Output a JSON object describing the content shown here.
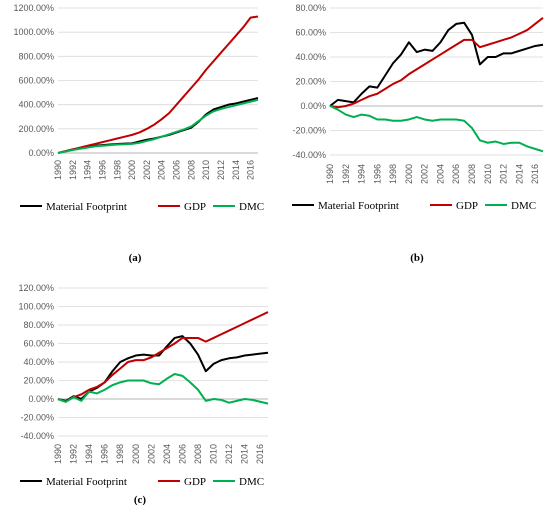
{
  "colors": {
    "Material Footprint": "#000000",
    "GDP": "#c00000",
    "DMC": "#00b050"
  },
  "captions": {
    "a": "(a)",
    "b": "(b)",
    "c": "(c)"
  },
  "chart_data": [
    {
      "type": "line",
      "panel": "a",
      "x": [
        1990,
        1991,
        1992,
        1993,
        1994,
        1995,
        1996,
        1997,
        1998,
        1999,
        2000,
        2001,
        2002,
        2003,
        2004,
        2005,
        2006,
        2007,
        2008,
        2009,
        2010,
        2011,
        2012,
        2013,
        2014,
        2015,
        2016,
        2017
      ],
      "x_tick_labels": [
        "1990",
        "1992",
        "1994",
        "1996",
        "1998",
        "2000",
        "2002",
        "2004",
        "2006",
        "2008",
        "2010",
        "2012",
        "2014",
        "2016"
      ],
      "y_tick_labels": [
        "0.00%",
        "200.00%",
        "400.00%",
        "600.00%",
        "800.00%",
        "1000.00%",
        "1200.00%"
      ],
      "ylim": [
        0,
        1200
      ],
      "legend": "bottom",
      "series": [
        {
          "name": "Material Footprint",
          "values": [
            0,
            15,
            30,
            40,
            50,
            60,
            65,
            70,
            75,
            78,
            80,
            95,
            110,
            120,
            135,
            150,
            170,
            190,
            210,
            260,
            320,
            360,
            380,
            400,
            410,
            425,
            440,
            455
          ]
        },
        {
          "name": "GDP",
          "values": [
            0,
            15,
            30,
            45,
            60,
            75,
            90,
            105,
            120,
            135,
            150,
            170,
            200,
            235,
            280,
            330,
            400,
            470,
            540,
            610,
            690,
            760,
            830,
            900,
            970,
            1040,
            1120,
            1130
          ]
        },
        {
          "name": "DMC",
          "values": [
            0,
            12,
            25,
            35,
            45,
            55,
            60,
            65,
            70,
            72,
            75,
            85,
            100,
            115,
            135,
            155,
            175,
            195,
            220,
            265,
            310,
            345,
            365,
            380,
            395,
            410,
            425,
            440
          ]
        }
      ]
    },
    {
      "type": "line",
      "panel": "b",
      "x": [
        1990,
        1991,
        1992,
        1993,
        1994,
        1995,
        1996,
        1997,
        1998,
        1999,
        2000,
        2001,
        2002,
        2003,
        2004,
        2005,
        2006,
        2007,
        2008,
        2009,
        2010,
        2011,
        2012,
        2013,
        2014,
        2015,
        2016,
        2017
      ],
      "x_tick_labels": [
        "1990",
        "1992",
        "1994",
        "1996",
        "1998",
        "2000",
        "2002",
        "2004",
        "2006",
        "2008",
        "2010",
        "2012",
        "2014",
        "2016"
      ],
      "y_tick_labels": [
        "-40.00%",
        "-20.00%",
        "0.00%",
        "20.00%",
        "40.00%",
        "60.00%",
        "80.00%"
      ],
      "ylim": [
        -40,
        80
      ],
      "legend": "bottom",
      "series": [
        {
          "name": "Material Footprint",
          "values": [
            0,
            5,
            4,
            3,
            10,
            16,
            15,
            25,
            35,
            42,
            52,
            44,
            46,
            45,
            52,
            62,
            67,
            68,
            58,
            34,
            40,
            40,
            43,
            43,
            45,
            47,
            49,
            50
          ]
        },
        {
          "name": "GDP",
          "values": [
            0,
            -1,
            0,
            2,
            5,
            8,
            10,
            14,
            18,
            21,
            26,
            30,
            34,
            38,
            42,
            46,
            50,
            54,
            54,
            48,
            50,
            52,
            54,
            56,
            59,
            62,
            67,
            72
          ]
        },
        {
          "name": "DMC",
          "values": [
            0,
            -3,
            -7,
            -9,
            -7,
            -8,
            -11,
            -11,
            -12,
            -12,
            -11,
            -9,
            -11,
            -12,
            -11,
            -11,
            -11,
            -12,
            -18,
            -28,
            -30,
            -29,
            -31,
            -30,
            -30,
            -33,
            -35,
            -37
          ]
        }
      ]
    },
    {
      "type": "line",
      "panel": "c",
      "x": [
        1990,
        1991,
        1992,
        1993,
        1994,
        1995,
        1996,
        1997,
        1998,
        1999,
        2000,
        2001,
        2002,
        2003,
        2004,
        2005,
        2006,
        2007,
        2008,
        2009,
        2010,
        2011,
        2012,
        2013,
        2014,
        2015,
        2016,
        2017
      ],
      "x_tick_labels": [
        "1990",
        "1992",
        "1994",
        "1996",
        "1998",
        "2000",
        "2002",
        "2004",
        "2006",
        "2008",
        "2010",
        "2012",
        "2014",
        "2016"
      ],
      "y_tick_labels": [
        "-40.00%",
        "-20.00%",
        "0.00%",
        "20.00%",
        "40.00%",
        "60.00%",
        "80.00%",
        "100.00%",
        "120.00%"
      ],
      "ylim": [
        -40,
        120
      ],
      "legend": "bottom",
      "series": [
        {
          "name": "Material Footprint",
          "values": [
            0,
            -2,
            3,
            0,
            8,
            12,
            18,
            30,
            40,
            44,
            47,
            48,
            47,
            47,
            57,
            66,
            68,
            60,
            48,
            30,
            38,
            42,
            44,
            45,
            47,
            48,
            49,
            50
          ]
        },
        {
          "name": "GDP",
          "values": [
            0,
            -3,
            2,
            5,
            10,
            13,
            18,
            26,
            33,
            40,
            42,
            42,
            45,
            50,
            55,
            60,
            66,
            66,
            66,
            62,
            66,
            70,
            74,
            78,
            82,
            86,
            90,
            94
          ]
        },
        {
          "name": "DMC",
          "values": [
            0,
            -3,
            2,
            -2,
            8,
            6,
            10,
            15,
            18,
            20,
            20,
            20,
            17,
            16,
            22,
            27,
            25,
            18,
            10,
            -2,
            0,
            -1,
            -4,
            -2,
            0,
            -1,
            -3,
            -5
          ]
        }
      ]
    }
  ]
}
